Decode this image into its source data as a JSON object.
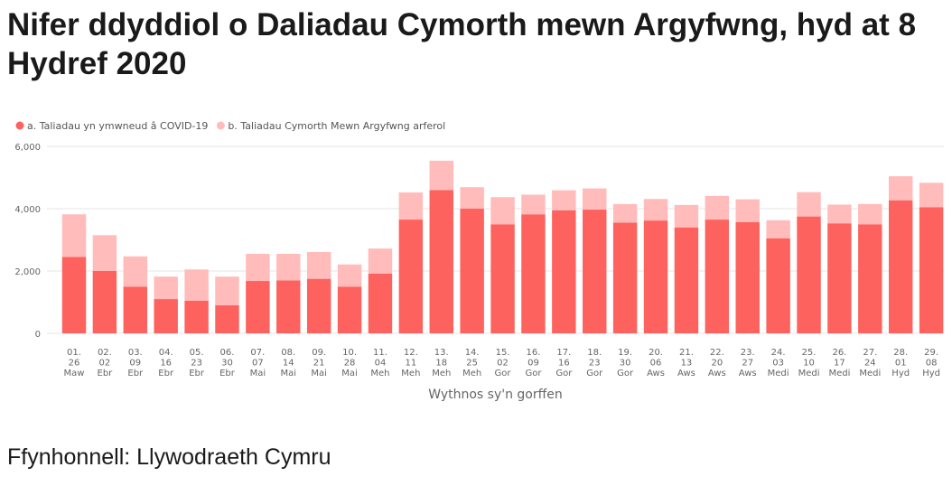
{
  "title": "Nifer ddyddiol o Daliadau Cymorth mewn Argyfwng, hyd at 8 Hydref 2020",
  "source": "Ffynhonnell: Llywodraeth Cymru",
  "chart_data": {
    "type": "bar",
    "stacked": true,
    "categories": [
      [
        "01.",
        "26",
        "Maw"
      ],
      [
        "02.",
        "02",
        "Ebr"
      ],
      [
        "03.",
        "09",
        "Ebr"
      ],
      [
        "04.",
        "16",
        "Ebr"
      ],
      [
        "05.",
        "23",
        "Ebr"
      ],
      [
        "06.",
        "30",
        "Ebr"
      ],
      [
        "07.",
        "07",
        "Mai"
      ],
      [
        "08.",
        "14",
        "Mai"
      ],
      [
        "09.",
        "21",
        "Mai"
      ],
      [
        "10.",
        "28",
        "Mai"
      ],
      [
        "11.",
        "04",
        "Meh"
      ],
      [
        "12.",
        "11",
        "Meh"
      ],
      [
        "13.",
        "18",
        "Meh"
      ],
      [
        "14.",
        "25",
        "Meh"
      ],
      [
        "15.",
        "02",
        "Gor"
      ],
      [
        "16.",
        "09",
        "Gor"
      ],
      [
        "17.",
        "16",
        "Gor"
      ],
      [
        "18.",
        "23",
        "Gor"
      ],
      [
        "19.",
        "30",
        "Gor"
      ],
      [
        "20.",
        "06",
        "Aws"
      ],
      [
        "21.",
        "13",
        "Aws"
      ],
      [
        "22.",
        "20",
        "Aws"
      ],
      [
        "23.",
        "27",
        "Aws"
      ],
      [
        "24.",
        "03",
        "Medi"
      ],
      [
        "25.",
        "10",
        "Medi"
      ],
      [
        "26.",
        "17",
        "Medi"
      ],
      [
        "27.",
        "24",
        "Medi"
      ],
      [
        "28.",
        "01",
        "Hyd"
      ],
      [
        "29.",
        "08",
        "Hyd"
      ]
    ],
    "series": [
      {
        "name": "a. Taliadau yn ymwneud â COVID-19",
        "color": "#fd625e",
        "values": [
          2450,
          2000,
          1500,
          1100,
          1050,
          900,
          1680,
          1700,
          1750,
          1500,
          1920,
          3650,
          4600,
          4000,
          3500,
          3820,
          3950,
          3970,
          3550,
          3620,
          3400,
          3650,
          3570,
          3050,
          3750,
          3530,
          3500,
          4270,
          4050
        ]
      },
      {
        "name": "b. Taliadau Cymorth Mewn Argyfwng arferol",
        "color": "#ffbcbb",
        "values": [
          1370,
          1150,
          970,
          720,
          1000,
          920,
          870,
          850,
          860,
          710,
          800,
          870,
          940,
          690,
          870,
          630,
          640,
          680,
          600,
          690,
          720,
          760,
          730,
          580,
          780,
          600,
          650,
          770,
          780
        ]
      }
    ],
    "xlabel": "Wythnos sy'n gorffen",
    "ylabel": "",
    "ylim": [
      0,
      6000
    ],
    "yticks": [
      "0",
      "2,000",
      "4,000",
      "6,000"
    ],
    "grid": true,
    "legend": "top-left"
  }
}
